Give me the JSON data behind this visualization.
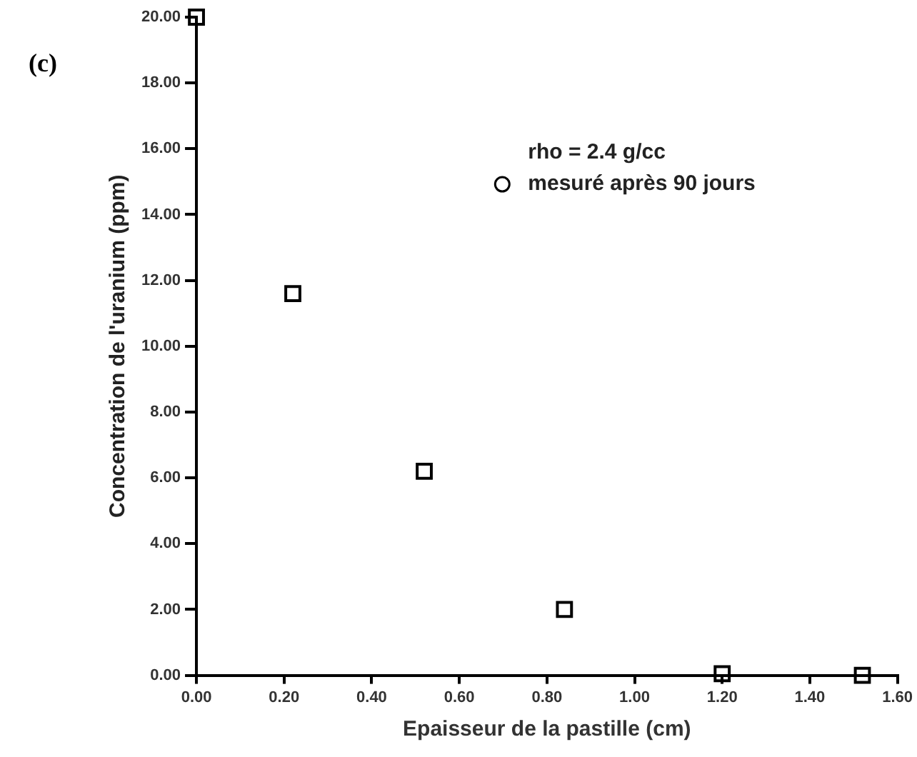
{
  "chart_data": {
    "type": "scatter",
    "xlabel": "Epaisseur de la pastille (cm)",
    "ylabel": "Concentration de l'uranium (ppm)",
    "legend_title": "rho = 2.4 g/cc",
    "annotations": [
      "(c)"
    ],
    "x": [
      0,
      0.22,
      0.52,
      0.84,
      1.2,
      1.52
    ],
    "series": [
      {
        "name": "mesuré après 90 jours",
        "color": "#000000",
        "values": [
          20,
          11.6,
          6.2,
          2,
          0.05,
          0
        ]
      }
    ],
    "xlim": [
      0,
      1.6
    ],
    "ylim": [
      0,
      20
    ],
    "xticks": [
      {
        "value": 0,
        "label": "0.00"
      },
      {
        "value": 0.2,
        "label": "0.20"
      },
      {
        "value": 0.4,
        "label": "0.40"
      },
      {
        "value": 0.6,
        "label": "0.60"
      },
      {
        "value": 0.8,
        "label": "0.80"
      },
      {
        "value": 1,
        "label": "1.00"
      },
      {
        "value": 1.2,
        "label": "1.20"
      },
      {
        "value": 1.4,
        "label": "1.40"
      },
      {
        "value": 1.6,
        "label": "1.60"
      }
    ],
    "yticks": [
      {
        "value": 0,
        "label": "0.00"
      },
      {
        "value": 2,
        "label": "2.00"
      },
      {
        "value": 4,
        "label": "4.00"
      },
      {
        "value": 6,
        "label": "6.00"
      },
      {
        "value": 8,
        "label": "8.00"
      },
      {
        "value": 10,
        "label": "10.00"
      },
      {
        "value": 12,
        "label": "12.00"
      },
      {
        "value": 14,
        "label": "14.00"
      },
      {
        "value": 16,
        "label": "16.00"
      },
      {
        "value": 18,
        "label": "18.00"
      },
      {
        "value": 20,
        "label": "20.00"
      }
    ],
    "grid": false,
    "legend": "top right",
    "marker": "square"
  }
}
